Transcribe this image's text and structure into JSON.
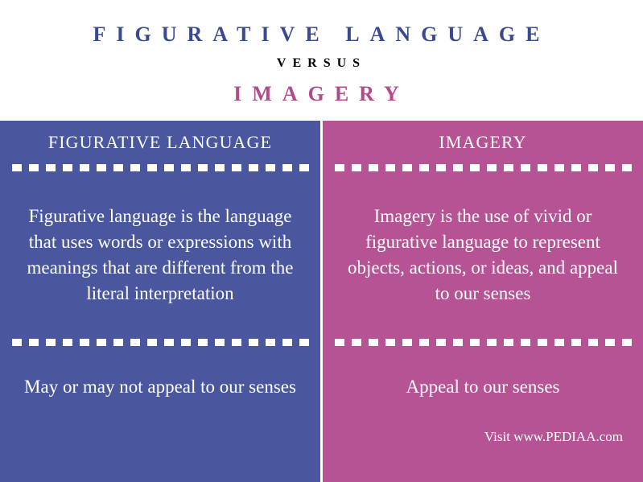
{
  "header": {
    "title_left": "FIGURATIVE LANGUAGE",
    "versus": "VERSUS",
    "title_right": "IMAGERY",
    "title_left_color": "#3a4a92",
    "title_right_color": "#b14b8c",
    "versus_color": "#000000"
  },
  "columns": {
    "left": {
      "bg_color": "#4a579f",
      "header": "FIGURATIVE LANGUAGE",
      "description": "Figurative language is the language that uses words or expressions with meanings that are different from the literal interpretation",
      "summary": "May or may not appeal to our senses"
    },
    "right": {
      "bg_color": "#b55394",
      "header": "IMAGERY",
      "description": "Imagery is the use of vivid or figurative language to represent objects, actions, or ideas, and appeal to our senses",
      "summary": "Appeal to our senses"
    }
  },
  "divider": {
    "square_count": 18,
    "square_color": "#ffffff"
  },
  "footer": {
    "text": "Visit www.PEDIAA.com"
  },
  "styling": {
    "body_width": 799,
    "body_height": 599,
    "font_family": "Georgia, serif",
    "header_fontsize": 26,
    "versus_fontsize": 16,
    "col_header_fontsize": 22,
    "desc_fontsize": 23,
    "footer_fontsize": 17,
    "letter_spacing_header": "0.5em",
    "text_color": "#ffffff"
  }
}
